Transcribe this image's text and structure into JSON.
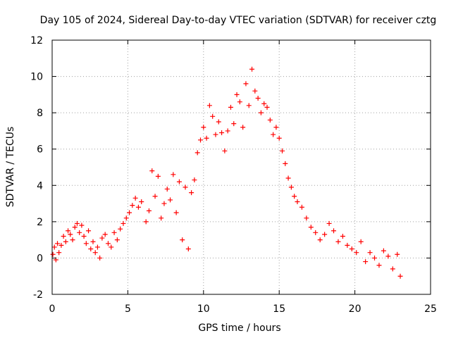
{
  "chart_data": {
    "type": "scatter",
    "title": "Day 105 of 2024, Sidereal Day-to-day VTEC variation (SDTVAR) for receiver cztg",
    "xlabel": "GPS time / hours",
    "ylabel": "SDTVAR / TECUs",
    "xlim": [
      0,
      25
    ],
    "ylim": [
      -2,
      12
    ],
    "xticks": [
      0,
      5,
      10,
      15,
      20,
      25
    ],
    "yticks": [
      -2,
      0,
      2,
      4,
      6,
      8,
      10,
      12
    ],
    "grid": true,
    "marker": "+",
    "color": "#ff0000",
    "series": [
      {
        "name": "SDTVAR",
        "x": [
          0.05,
          0.15,
          0.25,
          0.35,
          0.45,
          0.6,
          0.75,
          0.9,
          1.05,
          1.2,
          1.35,
          1.5,
          1.65,
          1.8,
          1.95,
          2.1,
          2.25,
          2.4,
          2.55,
          2.7,
          2.85,
          3.0,
          3.15,
          3.3,
          3.5,
          3.7,
          3.9,
          4.1,
          4.3,
          4.5,
          4.7,
          4.9,
          5.1,
          5.3,
          5.5,
          5.7,
          5.9,
          6.2,
          6.4,
          6.6,
          6.8,
          7.0,
          7.2,
          7.4,
          7.6,
          7.8,
          8.0,
          8.2,
          8.4,
          8.6,
          8.8,
          9.0,
          9.2,
          9.4,
          9.6,
          9.8,
          10.0,
          10.2,
          10.4,
          10.6,
          10.8,
          11.0,
          11.2,
          11.4,
          11.6,
          11.8,
          12.0,
          12.2,
          12.4,
          12.6,
          12.8,
          13.0,
          13.2,
          13.4,
          13.6,
          13.8,
          14.0,
          14.2,
          14.4,
          14.6,
          14.8,
          15.0,
          15.2,
          15.4,
          15.6,
          15.8,
          16.0,
          16.2,
          16.5,
          16.8,
          17.1,
          17.4,
          17.7,
          18.0,
          18.3,
          18.6,
          18.9,
          19.2,
          19.5,
          19.8,
          20.1,
          20.4,
          20.7,
          21.0,
          21.3,
          21.6,
          21.9,
          22.2,
          22.5,
          22.8,
          23.0
        ],
        "y": [
          0.2,
          0.6,
          -0.1,
          0.8,
          0.3,
          0.7,
          1.2,
          0.9,
          1.5,
          1.3,
          1.0,
          1.7,
          1.9,
          1.4,
          1.8,
          1.2,
          0.8,
          1.5,
          0.5,
          0.9,
          0.3,
          0.6,
          0.0,
          1.1,
          1.3,
          0.8,
          0.6,
          1.4,
          1.0,
          1.6,
          1.9,
          2.2,
          2.5,
          2.9,
          3.3,
          2.8,
          3.1,
          2.0,
          2.6,
          4.8,
          3.4,
          4.5,
          2.2,
          3.0,
          3.8,
          3.2,
          4.6,
          2.5,
          4.2,
          1.0,
          3.9,
          0.5,
          3.6,
          4.3,
          5.8,
          6.5,
          7.2,
          6.6,
          8.4,
          7.8,
          6.8,
          7.5,
          6.9,
          5.9,
          7.0,
          8.3,
          7.4,
          9.0,
          8.6,
          7.2,
          9.6,
          8.4,
          10.4,
          9.2,
          8.8,
          8.0,
          8.5,
          8.3,
          7.6,
          6.8,
          7.2,
          6.6,
          5.9,
          5.2,
          4.4,
          3.9,
          3.4,
          3.1,
          2.8,
          2.2,
          1.7,
          1.4,
          1.0,
          1.3,
          1.9,
          1.5,
          0.9,
          1.2,
          0.7,
          0.5,
          0.3,
          0.9,
          -0.2,
          0.3,
          0.0,
          -0.4,
          0.4,
          0.1,
          -0.6,
          0.2,
          -1.0
        ]
      }
    ]
  }
}
